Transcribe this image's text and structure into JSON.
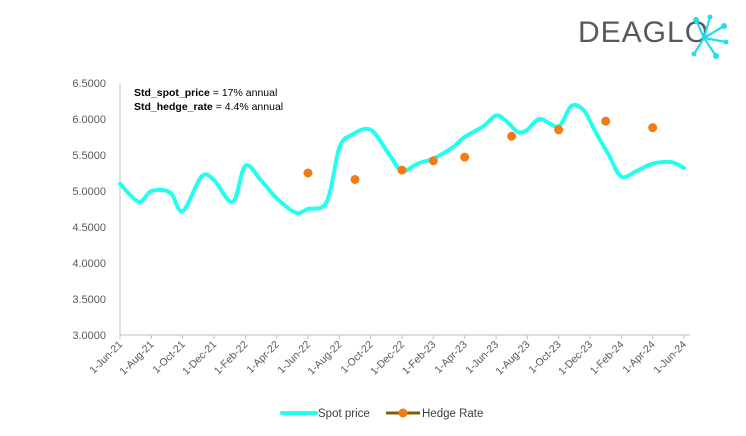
{
  "brand": {
    "name": "DEAGLO"
  },
  "annotations": {
    "line1_label": "Std_spot_price",
    "line1_value": " = 17% annual",
    "line2_label": "Std_hedge_rate",
    "line2_value": " = 4.4% annual"
  },
  "chart_data": {
    "type": "line",
    "title": "",
    "xlabel": "",
    "ylabel": "",
    "ylim": [
      3.0,
      6.5
    ],
    "yticks": [
      "3.0000",
      "3.5000",
      "4.0000",
      "4.5000",
      "5.0000",
      "5.5000",
      "6.0000",
      "6.5000"
    ],
    "categories": [
      "1-Jun-21",
      "1-Aug-21",
      "1-Oct-21",
      "1-Dec-21",
      "1-Feb-22",
      "1-Apr-22",
      "1-Jun-22",
      "1-Aug-22",
      "1-Oct-22",
      "1-Dec-22",
      "1-Feb-23",
      "1-Apr-23",
      "1-Jun-23",
      "1-Aug-23",
      "1-Oct-23",
      "1-Dec-23",
      "1-Feb-24",
      "1-Apr-24",
      "1-Jun-24"
    ],
    "series": [
      {
        "name": "Spot price",
        "kind": "line",
        "color": "#22ffee",
        "x": [
          0,
          0.6,
          1,
          1.6,
          2,
          2.6,
          3,
          3.6,
          4,
          4.5,
          5,
          5.6,
          6,
          6.6,
          7,
          7.4,
          8,
          8.6,
          9,
          9.5,
          10,
          10.6,
          11,
          11.6,
          12,
          12.3,
          12.7,
          13,
          13.4,
          14,
          14.4,
          14.8,
          15.2,
          15.6,
          16,
          16.5,
          17,
          17.6,
          18
        ],
        "values": [
          5.1,
          4.85,
          5.0,
          4.98,
          4.72,
          5.2,
          5.15,
          4.85,
          5.35,
          5.15,
          4.9,
          4.7,
          4.75,
          4.85,
          5.6,
          5.78,
          5.85,
          5.5,
          5.28,
          5.38,
          5.45,
          5.6,
          5.75,
          5.9,
          6.05,
          5.98,
          5.82,
          5.85,
          6.0,
          5.9,
          6.18,
          6.12,
          5.8,
          5.5,
          5.2,
          5.28,
          5.38,
          5.4,
          5.32
        ]
      },
      {
        "name": "Hedge Rate",
        "kind": "scatter",
        "color": "#f47a14",
        "x": [
          6,
          7.5,
          9,
          10,
          11,
          12.5,
          14,
          15.5,
          17
        ],
        "values": [
          5.25,
          5.16,
          5.29,
          5.42,
          5.47,
          5.76,
          5.85,
          5.97,
          5.88
        ]
      }
    ],
    "legend": [
      {
        "name": "Spot price",
        "color": "#22ffee"
      },
      {
        "name": "Hedge Rate",
        "color": "#f47a14",
        "line_color": "#7f6000"
      }
    ],
    "legend_position": "bottom"
  }
}
